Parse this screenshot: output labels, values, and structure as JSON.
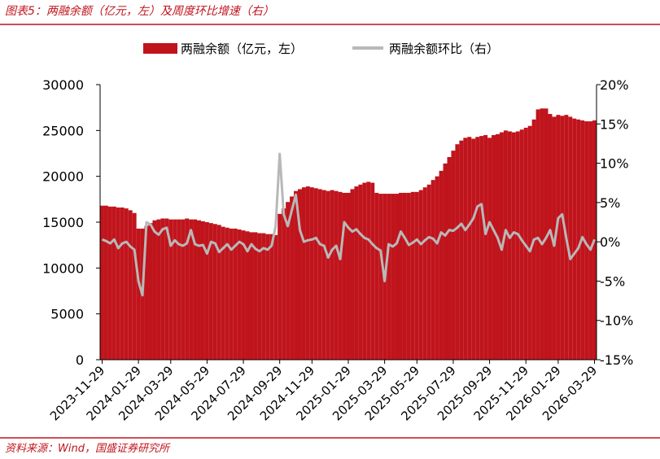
{
  "chart_data": {
    "type": "bar_line",
    "title": "图表5：两融余额（亿元，左）及周度环比增速（右）",
    "source": "资料来源：Wind，国盛证券研究所",
    "categories": [
      "2023-11-29",
      null,
      null,
      null,
      null,
      null,
      null,
      null,
      null,
      "2024-01-29",
      null,
      null,
      null,
      null,
      null,
      null,
      null,
      "2024-03-29",
      null,
      null,
      null,
      null,
      null,
      null,
      null,
      null,
      "2024-05-29",
      null,
      null,
      null,
      null,
      null,
      null,
      null,
      null,
      "2024-07-29",
      null,
      null,
      null,
      null,
      null,
      null,
      null,
      null,
      "2024-09-29",
      null,
      null,
      null,
      null,
      null,
      null,
      null,
      "2024-11-29",
      null,
      null,
      null,
      null,
      null,
      null,
      null,
      null,
      "2025-01-29",
      null,
      null,
      null,
      null,
      null,
      null,
      null,
      null,
      "2025-03-29",
      null,
      null,
      null,
      null,
      null,
      null,
      null,
      "2025-05-29",
      null,
      null,
      null,
      null,
      null,
      null,
      null,
      null,
      "2025-07-29",
      null,
      null,
      null,
      null,
      null,
      null,
      null,
      null,
      "2025-09-29",
      null,
      null,
      null,
      null,
      null,
      null,
      null,
      null,
      "2025-11-29",
      null,
      null,
      null,
      null,
      null,
      null,
      null,
      "2026-01-29",
      null,
      null,
      null,
      null,
      null,
      null,
      null,
      null,
      "2026-03-29"
    ],
    "series": [
      {
        "name": "两融余额（亿元，左）",
        "color": "#c0141c",
        "type": "bar",
        "values": [
          16800,
          16800,
          16700,
          16700,
          16600,
          16600,
          16500,
          16300,
          16000,
          14300,
          14300,
          14600,
          14900,
          15200,
          15300,
          15400,
          15400,
          15300,
          15300,
          15300,
          15300,
          15400,
          15300,
          15300,
          15200,
          15100,
          15000,
          14900,
          14800,
          14700,
          14500,
          14400,
          14300,
          14300,
          14200,
          14100,
          14000,
          13900,
          13900,
          13800,
          13800,
          13700,
          13700,
          13600,
          15900,
          16500,
          17200,
          17800,
          18400,
          18600,
          18800,
          18900,
          18800,
          18700,
          18600,
          18500,
          18400,
          18500,
          18400,
          18300,
          18200,
          18200,
          18600,
          18900,
          19100,
          19300,
          19400,
          19300,
          18200,
          18100,
          18100,
          18100,
          18100,
          18100,
          18200,
          18200,
          18200,
          18300,
          18300,
          18500,
          18800,
          19100,
          19600,
          20000,
          20600,
          21400,
          22100,
          22800,
          23500,
          23900,
          24200,
          24300,
          24100,
          24300,
          24400,
          24500,
          24200,
          24500,
          24600,
          24800,
          25000,
          24900,
          24800,
          24900,
          25100,
          25300,
          25500,
          26200,
          27300,
          27400,
          27400,
          26800,
          26500,
          26700,
          26600,
          26700,
          26500,
          26300,
          26200,
          26100,
          26000,
          26000,
          26100
        ]
      },
      {
        "name": "两融余额环比（右）",
        "color": "#b8b8b8",
        "type": "line",
        "axis": "y2",
        "values": [
          0.3,
          0.1,
          -0.2,
          0.3,
          -0.8,
          -0.2,
          0,
          -0.6,
          -1.0,
          -5.0,
          -6.8,
          2.5,
          2.2,
          1.3,
          0.9,
          1.6,
          1.8,
          -0.5,
          0.2,
          -0.3,
          -0.5,
          -0.2,
          1.5,
          -0.3,
          -0.5,
          -0.4,
          -1.5,
          0,
          -0.2,
          -1.3,
          -0.8,
          -0.3,
          -1.0,
          -0.5,
          0,
          -0.3,
          -1.2,
          -0.3,
          -0.9,
          -1.2,
          -0.8,
          -1.0,
          -0.5,
          2.0,
          11.2,
          3.5,
          2.0,
          4.0,
          6.0,
          1.5,
          0,
          0.2,
          0.3,
          0.5,
          -0.3,
          -0.5,
          -2.0,
          -1.0,
          -0.5,
          -2.2,
          2.5,
          1.8,
          1.3,
          1.6,
          1.0,
          0.5,
          0.3,
          -0.3,
          -0.8,
          -1.1,
          -5.0,
          -0.3,
          -0.6,
          -0.2,
          1.3,
          0.5,
          -0.4,
          -0.1,
          0.3,
          -0.3,
          0.2,
          0.6,
          0.4,
          -0.2,
          1.2,
          0.8,
          1.5,
          1.4,
          1.8,
          2.3,
          1.5,
          2.2,
          3.0,
          4.5,
          4.8,
          1.0,
          2.5,
          1.5,
          0.5,
          -1.0,
          1.5,
          0.5,
          1.2,
          1.0,
          0.2,
          -0.5,
          -1.2,
          0.3,
          0.5,
          -0.3,
          0.5,
          1.5,
          -0.5,
          3.0,
          3.5,
          0.5,
          -2.2,
          -1.5,
          -0.8,
          0.6,
          -0.3,
          -1.0,
          0.3
        ]
      }
    ],
    "ylim": [
      0,
      30000
    ],
    "yticks": [
      0,
      5000,
      10000,
      15000,
      20000,
      25000,
      30000
    ],
    "y2lim": [
      -15,
      20
    ],
    "y2ticks": [
      {
        "value": -15,
        "label": "-15%"
      },
      {
        "value": -10,
        "label": "-10%"
      },
      {
        "value": -5,
        "label": "-5%"
      },
      {
        "value": 0,
        "label": "0%"
      },
      {
        "value": 5,
        "label": "5%"
      },
      {
        "value": 10,
        "label": "10%"
      },
      {
        "value": 15,
        "label": "15%"
      },
      {
        "value": 20,
        "label": "20%"
      }
    ],
    "grid": false,
    "legend": "top"
  }
}
